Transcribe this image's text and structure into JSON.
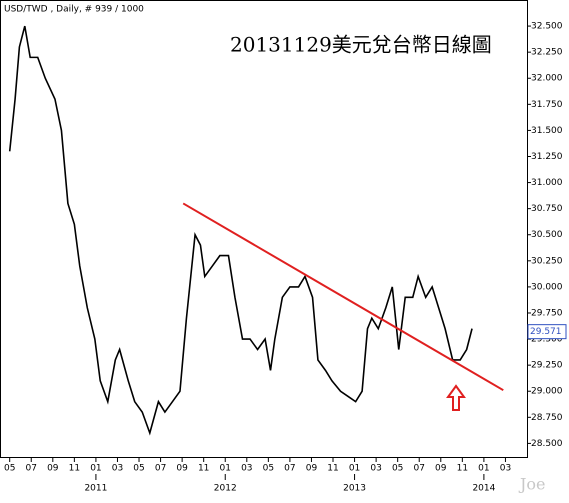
{
  "chart_data": {
    "type": "line",
    "header": "USD/TWD , Daily, # 939 / 1000",
    "title": "20131129美元兌台幣日線圖",
    "watermark": "Joe",
    "color": "#000000",
    "x": [
      5.0,
      5.5,
      5.9,
      6.4,
      6.9,
      7.6,
      8.3,
      9.2,
      9.8,
      10.4,
      11.0,
      11.5,
      12.2,
      12.9,
      13.4,
      14.1,
      14.8,
      15.2,
      16.0,
      16.6,
      17.3,
      18.0,
      18.8,
      19.4,
      20.1,
      20.8,
      21.4,
      21.7,
      22.2,
      22.7,
      23.1,
      23.8,
      24.5,
      25.3,
      25.9,
      26.6,
      27.3,
      28.0,
      28.7,
      29.2,
      29.6,
      30.3,
      31.0,
      31.8,
      32.4,
      33.1,
      33.6,
      34.3,
      34.9,
      35.7,
      36.4,
      37.1,
      37.7,
      38.2,
      38.6,
      39.2,
      39.9,
      40.5,
      41.1,
      41.7,
      42.4,
      42.9,
      43.6,
      44.2,
      44.8,
      45.4,
      46.1,
      46.8,
      47.4,
      47.9
    ],
    "values": [
      31.3,
      31.8,
      32.3,
      32.5,
      32.2,
      32.2,
      32.0,
      31.8,
      31.5,
      30.8,
      30.6,
      30.2,
      29.8,
      29.5,
      29.1,
      28.9,
      29.3,
      29.4,
      29.1,
      28.9,
      28.8,
      28.6,
      28.9,
      28.8,
      28.9,
      29.0,
      29.7,
      30.0,
      30.5,
      30.4,
      30.1,
      30.2,
      30.3,
      30.3,
      29.9,
      29.5,
      29.5,
      29.4,
      29.5,
      29.2,
      29.5,
      29.9,
      30.0,
      30.0,
      30.1,
      29.9,
      29.3,
      29.2,
      29.1,
      29.0,
      28.95,
      28.9,
      29.0,
      29.6,
      29.7,
      29.6,
      29.8,
      30.0,
      29.4,
      29.9,
      29.9,
      30.1,
      29.9,
      30.0,
      29.8,
      29.6,
      29.3,
      29.3,
      29.4,
      29.6
    ],
    "last_value": 29.571,
    "trend_line": {
      "x": [
        21.1,
        50.8
      ],
      "values": [
        30.8,
        29.01
      ],
      "color": "#e02020"
    },
    "xlim": [
      4.1,
      53
    ],
    "ylim": [
      28.36,
      32.75
    ],
    "xticks": [
      {
        "value": 5,
        "label": "05"
      },
      {
        "value": 7,
        "label": "07"
      },
      {
        "value": 9,
        "label": "09"
      },
      {
        "value": 11,
        "label": "11"
      },
      {
        "value": 13,
        "label": "01"
      },
      {
        "value": 15,
        "label": "03"
      },
      {
        "value": 17,
        "label": "05"
      },
      {
        "value": 19,
        "label": "07"
      },
      {
        "value": 21,
        "label": "09"
      },
      {
        "value": 23,
        "label": "11"
      },
      {
        "value": 25,
        "label": "01"
      },
      {
        "value": 27,
        "label": "03"
      },
      {
        "value": 29,
        "label": "05"
      },
      {
        "value": 31,
        "label": "07"
      },
      {
        "value": 33,
        "label": "09"
      },
      {
        "value": 35,
        "label": "11"
      },
      {
        "value": 37,
        "label": "01"
      },
      {
        "value": 39,
        "label": "03"
      },
      {
        "value": 41,
        "label": "05"
      },
      {
        "value": 43,
        "label": "07"
      },
      {
        "value": 45,
        "label": "09"
      },
      {
        "value": 47,
        "label": "11"
      },
      {
        "value": 49,
        "label": "01"
      },
      {
        "value": 51,
        "label": "03"
      }
    ],
    "year_ticks": [
      {
        "value": 13,
        "label": "2011"
      },
      {
        "value": 25,
        "label": "2012"
      },
      {
        "value": 37,
        "label": "2013"
      },
      {
        "value": 49,
        "label": "2014"
      }
    ],
    "yticks": [
      {
        "value": 28.5,
        "label": "28.500"
      },
      {
        "value": 28.75,
        "label": "28.750"
      },
      {
        "value": 29,
        "label": "29.000"
      },
      {
        "value": 29.25,
        "label": "29.250"
      },
      {
        "value": 29.5,
        "label": "29.500"
      },
      {
        "value": 29.75,
        "label": "29.750"
      },
      {
        "value": 30,
        "label": "30.000"
      },
      {
        "value": 30.25,
        "label": "30.250"
      },
      {
        "value": 30.5,
        "label": "30.500"
      },
      {
        "value": 30.75,
        "label": "30.750"
      },
      {
        "value": 31,
        "label": "31.000"
      },
      {
        "value": 31.25,
        "label": "31.250"
      },
      {
        "value": 31.5,
        "label": "31.500"
      },
      {
        "value": 31.75,
        "label": "31.750"
      },
      {
        "value": 32,
        "label": "32.000"
      },
      {
        "value": 32.25,
        "label": "32.250"
      },
      {
        "value": 32.5,
        "label": "32.500"
      }
    ]
  }
}
